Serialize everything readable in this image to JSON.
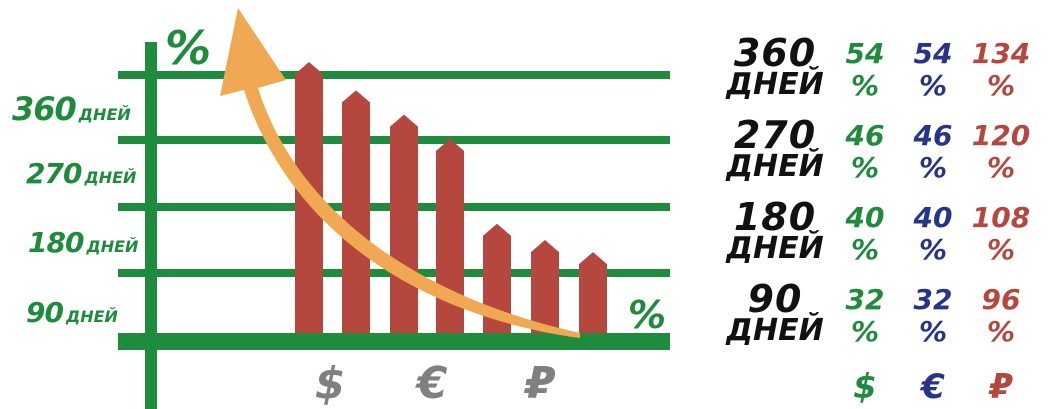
{
  "colors": {
    "green": "#1e8c3c",
    "red": "#b5473f",
    "blue": "#27348b",
    "orange": "#f0a952",
    "grey": "#808080",
    "black": "#111111"
  },
  "chart_data": {
    "type": "bar",
    "y_axis_symbol": "%",
    "x_axis_symbol": "%",
    "y_tick_labels": [
      {
        "value": "360",
        "unit": "ДНЕЙ"
      },
      {
        "value": "270",
        "unit": "ДНЕЙ"
      },
      {
        "value": "180",
        "unit": "ДНЕЙ"
      },
      {
        "value": "90",
        "unit": "ДНЕЙ"
      }
    ],
    "currency_labels": [
      "$",
      "€",
      "₽"
    ],
    "values": [
      134,
      120,
      108,
      96,
      54,
      46,
      40
    ],
    "grid": true,
    "trend_arrow": "decreasing curve pointing up-left"
  },
  "rates_table": {
    "rows": [
      {
        "days": "360",
        "unit": "ДНЕЙ",
        "usd": "54",
        "eur": "54",
        "rub": "134"
      },
      {
        "days": "270",
        "unit": "ДНЕЙ",
        "usd": "46",
        "eur": "46",
        "rub": "120"
      },
      {
        "days": "180",
        "unit": "ДНЕЙ",
        "usd": "40",
        "eur": "40",
        "rub": "108"
      },
      {
        "days": "90",
        "unit": "ДНЕЙ",
        "usd": "32",
        "eur": "32",
        "rub": "96"
      }
    ],
    "percent_sign": "%",
    "currencies": [
      "$",
      "€",
      "₽"
    ]
  }
}
